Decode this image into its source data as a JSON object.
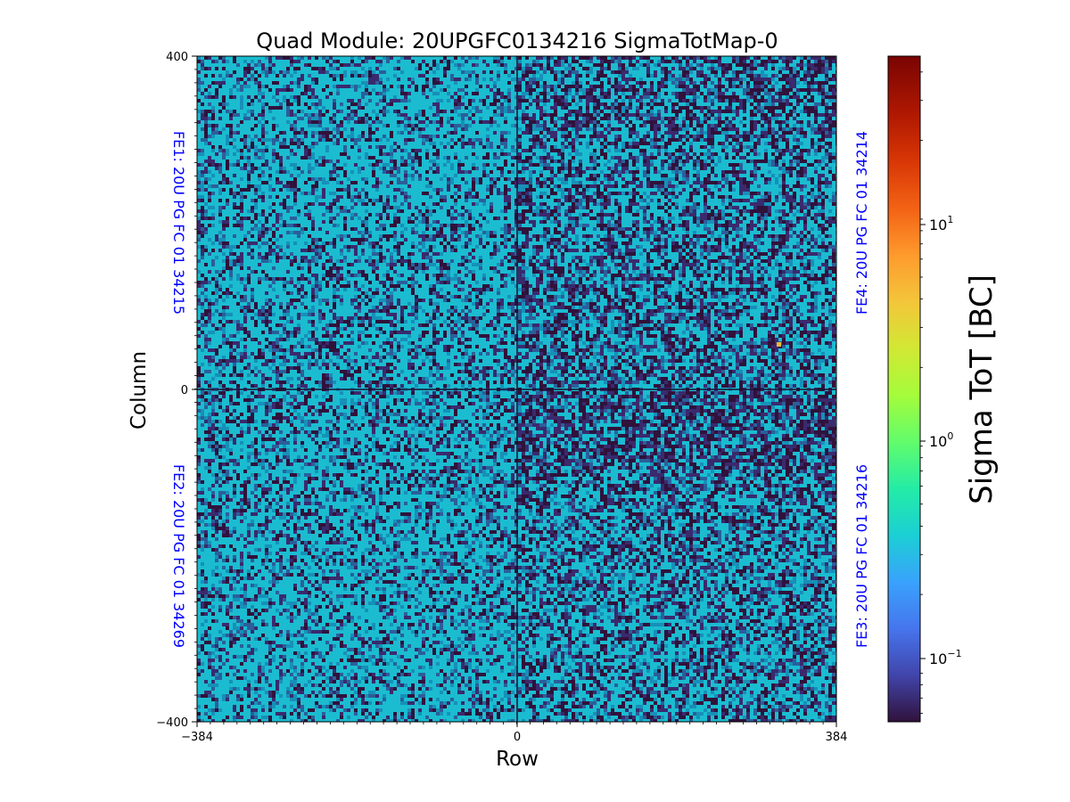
{
  "chart_data": {
    "type": "heatmap",
    "title": "Quad Module: 20UPGFC0134216 SigmaTotMap-0",
    "xlabel": "Row",
    "ylabel": "Column",
    "xlim": [
      -384,
      384
    ],
    "ylim": [
      -400,
      400
    ],
    "x_ticks": [
      "−384",
      "0",
      "384"
    ],
    "y_ticks": [
      "400",
      "0",
      "−400"
    ],
    "quadrant_labels": [
      "FE1: 20U PG FC 01 34215",
      "FE2: 20U PG FC 01 34269",
      "FE3: 20U PG FC 01 34216",
      "FE4: 20U PG FC 01 34214"
    ],
    "quadrant_label_color": "#0000ff",
    "colorbar": {
      "label": "Sigma ToT [BC]",
      "scale": "log",
      "colormap": "turbo",
      "range": [
        0.055,
        47
      ],
      "tick_base": "10",
      "tick_exponents": [
        "−1",
        "0",
        "1"
      ]
    }
  }
}
